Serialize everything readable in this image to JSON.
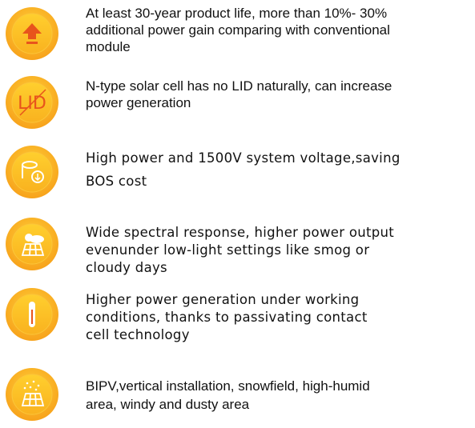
{
  "features": [
    {
      "lines": [
        "At least 30-year product life, more than 10%- 30%",
        "additional power gain comparing with conventional",
        "module"
      ]
    },
    {
      "icon_label": "LID",
      "lines": [
        "N-type solar cell has no LID naturally, can increase",
        "power generation"
      ]
    },
    {
      "lines": [
        "High power and 1500V system voltage,saving",
        "BOS cost"
      ]
    },
    {
      "lines": [
        "Wide spectral response, higher power output",
        "evenunder low-light settings like smog or",
        "cloudy days"
      ]
    },
    {
      "lines": [
        "Higher power generation under working",
        "conditions, thanks to passivating contact",
        "cell technology"
      ]
    },
    {
      "lines": [
        "BIPV,vertical installation, snowfield, high-humid",
        "area, windy and dusty area"
      ]
    }
  ]
}
